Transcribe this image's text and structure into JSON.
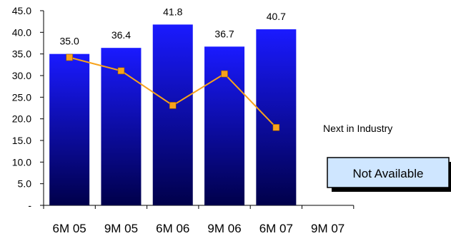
{
  "chart_data": {
    "type": "bar",
    "categories": [
      "6M 05",
      "9M 05",
      "6M 06",
      "9M 06",
      "6M 07",
      "9M 07"
    ],
    "ylim": [
      0,
      45
    ],
    "yticks": [
      0,
      5,
      10,
      15,
      20,
      25,
      30,
      35,
      40,
      45
    ],
    "ytick_labels": [
      "-",
      "5.0",
      "10.0",
      "15.0",
      "20.0",
      "25.0",
      "30.0",
      "35.0",
      "40.0",
      "45.0"
    ],
    "series": [
      {
        "kind": "bar",
        "values": [
          35.0,
          36.4,
          41.8,
          36.7,
          40.7,
          null
        ],
        "data_labels": [
          "35.0",
          "36.4",
          "41.8",
          "36.7",
          "40.7",
          ""
        ],
        "color_top": "#1a1aff",
        "color_bottom": "#00004a"
      },
      {
        "name": "Next in Industry",
        "kind": "line",
        "values": [
          34.2,
          31.1,
          23.1,
          30.4,
          18.0,
          null
        ],
        "color": "#f7a21b"
      }
    ],
    "annotation": "Not Available",
    "annotation_fill": "#cfe6ff",
    "grid": false,
    "legend": "none"
  }
}
